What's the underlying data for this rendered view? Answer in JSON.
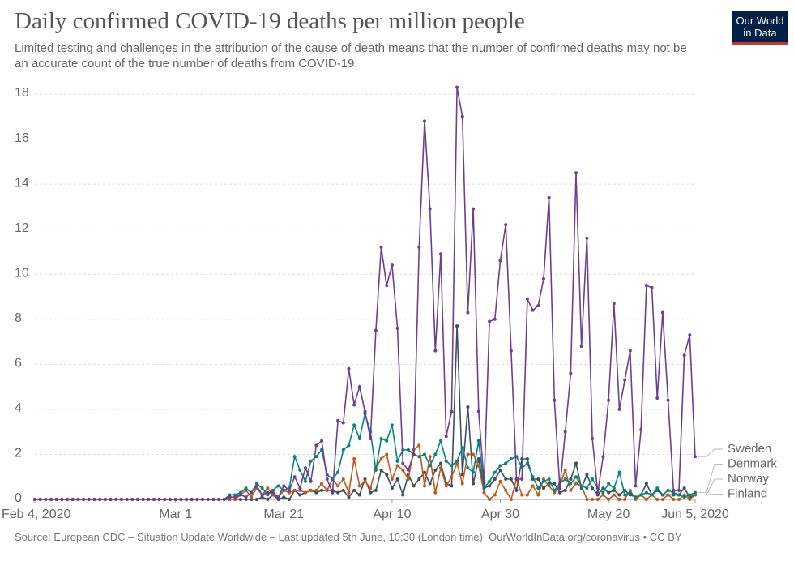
{
  "chart_data": {
    "type": "line",
    "title": "Daily confirmed COVID-19 deaths per million people",
    "subtitle": "Limited testing and challenges in the attribution of the cause of death means that the number of confirmed deaths may not be an accurate count of the true number of deaths from COVID-19.",
    "logo": [
      "Our World",
      "in Data"
    ],
    "source": "Source: European CDC – Situation Update Worldwide – Last updated 5th June, 10:30 (London time)",
    "credit": "OurWorldInData.org/coronavirus • CC BY",
    "x": [
      "2020-02-04",
      "2020-02-05",
      "2020-02-06",
      "2020-02-07",
      "2020-02-08",
      "2020-02-09",
      "2020-02-10",
      "2020-02-11",
      "2020-02-12",
      "2020-02-13",
      "2020-02-14",
      "2020-02-15",
      "2020-02-16",
      "2020-02-17",
      "2020-02-18",
      "2020-02-19",
      "2020-02-20",
      "2020-02-21",
      "2020-02-22",
      "2020-02-23",
      "2020-02-24",
      "2020-02-25",
      "2020-02-26",
      "2020-02-27",
      "2020-02-28",
      "2020-02-29",
      "2020-03-01",
      "2020-03-02",
      "2020-03-03",
      "2020-03-04",
      "2020-03-05",
      "2020-03-06",
      "2020-03-07",
      "2020-03-08",
      "2020-03-09",
      "2020-03-10",
      "2020-03-11",
      "2020-03-12",
      "2020-03-13",
      "2020-03-14",
      "2020-03-15",
      "2020-03-16",
      "2020-03-17",
      "2020-03-18",
      "2020-03-19",
      "2020-03-20",
      "2020-03-21",
      "2020-03-22",
      "2020-03-23",
      "2020-03-24",
      "2020-03-25",
      "2020-03-26",
      "2020-03-27",
      "2020-03-28",
      "2020-03-29",
      "2020-03-30",
      "2020-03-31",
      "2020-04-01",
      "2020-04-02",
      "2020-04-03",
      "2020-04-04",
      "2020-04-05",
      "2020-04-06",
      "2020-04-07",
      "2020-04-08",
      "2020-04-09",
      "2020-04-10",
      "2020-04-11",
      "2020-04-12",
      "2020-04-13",
      "2020-04-14",
      "2020-04-15",
      "2020-04-16",
      "2020-04-17",
      "2020-04-18",
      "2020-04-19",
      "2020-04-20",
      "2020-04-21",
      "2020-04-22",
      "2020-04-23",
      "2020-04-24",
      "2020-04-25",
      "2020-04-26",
      "2020-04-27",
      "2020-04-28",
      "2020-04-29",
      "2020-04-30",
      "2020-05-01",
      "2020-05-02",
      "2020-05-03",
      "2020-05-04",
      "2020-05-05",
      "2020-05-06",
      "2020-05-07",
      "2020-05-08",
      "2020-05-09",
      "2020-05-10",
      "2020-05-11",
      "2020-05-12",
      "2020-05-13",
      "2020-05-14",
      "2020-05-15",
      "2020-05-16",
      "2020-05-17",
      "2020-05-18",
      "2020-05-19",
      "2020-05-20",
      "2020-05-21",
      "2020-05-22",
      "2020-05-23",
      "2020-05-24",
      "2020-05-25",
      "2020-05-26",
      "2020-05-27",
      "2020-05-28",
      "2020-05-29",
      "2020-05-30",
      "2020-05-31",
      "2020-06-01",
      "2020-06-02",
      "2020-06-03",
      "2020-06-04",
      "2020-06-05"
    ],
    "xlim": [
      "2020-02-04",
      "2020-06-05"
    ],
    "xticks": [
      {
        "value": "2020-02-04",
        "label": "Feb 4, 2020"
      },
      {
        "value": "2020-03-01",
        "label": "Mar 1"
      },
      {
        "value": "2020-03-21",
        "label": "Mar 21"
      },
      {
        "value": "2020-04-10",
        "label": "Apr 10"
      },
      {
        "value": "2020-04-30",
        "label": "Apr 30"
      },
      {
        "value": "2020-05-20",
        "label": "May 20"
      },
      {
        "value": "2020-06-05",
        "label": "Jun 5, 2020"
      }
    ],
    "ylim": [
      0,
      18
    ],
    "yticks": [
      0,
      2,
      4,
      6,
      8,
      10,
      12,
      14,
      16,
      18
    ],
    "grid": true,
    "series": [
      {
        "name": "Sweden",
        "color": "#6d3e91",
        "values": [
          0,
          0,
          0,
          0,
          0,
          0,
          0,
          0,
          0,
          0,
          0,
          0,
          0,
          0,
          0,
          0,
          0,
          0,
          0,
          0,
          0,
          0,
          0,
          0,
          0,
          0,
          0,
          0,
          0,
          0,
          0,
          0,
          0,
          0,
          0,
          0,
          0.1,
          0.1,
          0.2,
          0.1,
          0.3,
          0.6,
          0.2,
          0.3,
          0.3,
          0.1,
          0.6,
          0.4,
          1.0,
          0.5,
          1.4,
          0.8,
          2.4,
          2.6,
          0.9,
          0.3,
          3.5,
          3.4,
          5.8,
          4.2,
          5.0,
          3.9,
          2.7,
          7.5,
          11.2,
          9.5,
          10.4,
          7.6,
          1.6,
          1.3,
          2.0,
          11.2,
          16.8,
          12.9,
          6.6,
          10.9,
          2.8,
          3.9,
          18.3,
          17.0,
          8.3,
          12.9,
          3.9,
          0.7,
          7.9,
          8.0,
          10.6,
          12.2,
          6.6,
          0.9,
          0.9,
          8.9,
          8.4,
          8.6,
          9.8,
          13.4,
          4.4,
          0.5,
          3.0,
          5.6,
          14.5,
          6.8,
          11.6,
          2.7,
          0.3,
          1.9,
          4.4,
          8.7,
          4.0,
          5.3,
          6.6,
          0.6,
          3.1,
          9.5,
          9.4,
          4.5,
          8.3,
          4.4,
          0.4,
          0.4,
          6.4,
          7.3,
          1.9
        ]
      },
      {
        "name": "Denmark",
        "color": "#00847e",
        "values": [
          0,
          0,
          0,
          0,
          0,
          0,
          0,
          0,
          0,
          0,
          0,
          0,
          0,
          0,
          0,
          0,
          0,
          0,
          0,
          0,
          0,
          0,
          0,
          0,
          0,
          0,
          0,
          0,
          0,
          0,
          0,
          0,
          0,
          0,
          0,
          0,
          0.2,
          0.2,
          0.3,
          0.5,
          0.3,
          0.7,
          0.5,
          0.2,
          0.4,
          0.6,
          0.4,
          0.5,
          1.9,
          1.3,
          0.8,
          1.7,
          1.9,
          2.2,
          1.1,
          0.9,
          1.2,
          2.2,
          2.4,
          3.3,
          2.7,
          3.8,
          3.0,
          1.3,
          2.7,
          2.6,
          3.3,
          1.7,
          2.2,
          2.2,
          2.0,
          1.9,
          2.0,
          1.5,
          2.0,
          2.6,
          1.7,
          1.5,
          1.7,
          2.3,
          1.4,
          1.2,
          2.6,
          0.5,
          0.8,
          1.2,
          1.5,
          1.6,
          1.8,
          1.9,
          1.4,
          1.6,
          1.0,
          0.5,
          0.8,
          0.9,
          0.4,
          0.7,
          0.9,
          0.7,
          1.0,
          0.6,
          0.5,
          0.9,
          0.5,
          0.3,
          0.7,
          0.5,
          1.2,
          0.2,
          0.3,
          0.1,
          0.2,
          0.3,
          0.2,
          0.5,
          0.2,
          0.4,
          0.3,
          0.2,
          0.1,
          0.2,
          0.3
        ]
      },
      {
        "name": "Norway",
        "color": "#c05917",
        "values": [
          0,
          0,
          0,
          0,
          0,
          0,
          0,
          0,
          0,
          0,
          0,
          0,
          0,
          0,
          0,
          0,
          0,
          0,
          0,
          0,
          0,
          0,
          0,
          0,
          0,
          0,
          0,
          0,
          0,
          0,
          0,
          0,
          0,
          0,
          0,
          0,
          0,
          0,
          0.2,
          0.4,
          0.1,
          0.5,
          0.2,
          0.5,
          0.2,
          0.1,
          0.4,
          0.3,
          0.4,
          0.4,
          0.3,
          0.4,
          0.4,
          0.7,
          0.4,
          0.9,
          0.6,
          0.9,
          0.3,
          1.8,
          0.6,
          0.8,
          0.5,
          1.4,
          1.8,
          2.0,
          0.9,
          1.5,
          1.3,
          0.9,
          2.2,
          2.4,
          0.6,
          1.9,
          0.3,
          1.4,
          0.6,
          1.0,
          1.6,
          0.7,
          2.0,
          2.0,
          1.5,
          0.3,
          0,
          0.2,
          0.8,
          0.4,
          0,
          0.9,
          0.2,
          0.2,
          0.6,
          0.2,
          0.9,
          0.6,
          0.3,
          0.6,
          1.3,
          0.4,
          0.7,
          0.6,
          0,
          0,
          0,
          0.2,
          0,
          0.2,
          0,
          0,
          0.4,
          0,
          0.2,
          0,
          0.2,
          0,
          0,
          0.2,
          0,
          0,
          0.2,
          0,
          0.2
        ]
      },
      {
        "name": "Finland",
        "color": "#3c4e66",
        "values": [
          0,
          0,
          0,
          0,
          0,
          0,
          0,
          0,
          0,
          0,
          0,
          0,
          0,
          0,
          0,
          0,
          0,
          0,
          0,
          0,
          0,
          0,
          0,
          0,
          0,
          0,
          0,
          0,
          0,
          0,
          0,
          0,
          0,
          0,
          0,
          0,
          0,
          0,
          0,
          0,
          0,
          0,
          0.1,
          0,
          0.2,
          0,
          0.1,
          0,
          0.4,
          0.2,
          0.3,
          0.4,
          0.3,
          0.4,
          0.4,
          0.4,
          0.3,
          0.4,
          0.1,
          0.4,
          0.2,
          0.9,
          0.3,
          0.4,
          1.3,
          1.1,
          0.5,
          0.9,
          0.2,
          1.1,
          0.6,
          0.9,
          1.2,
          0.7,
          1.3,
          1.6,
          0.7,
          0.6,
          7.7,
          1.1,
          4.1,
          0.7,
          1.8,
          0.5,
          0.6,
          0.9,
          1.3,
          0.9,
          0.9,
          0.4,
          1.8,
          1.8,
          0.9,
          0.9,
          0.5,
          0.7,
          0.7,
          0.3,
          0.4,
          0.9,
          1.6,
          0.5,
          1.1,
          0.5,
          0.2,
          0.5,
          0.3,
          0.4,
          0.2,
          0.4,
          0.2,
          0.1,
          0.2,
          0.7,
          0.2,
          0.4,
          0.2,
          0.2,
          0.2,
          0.2,
          0.5,
          0.1,
          0.2
        ]
      }
    ]
  }
}
